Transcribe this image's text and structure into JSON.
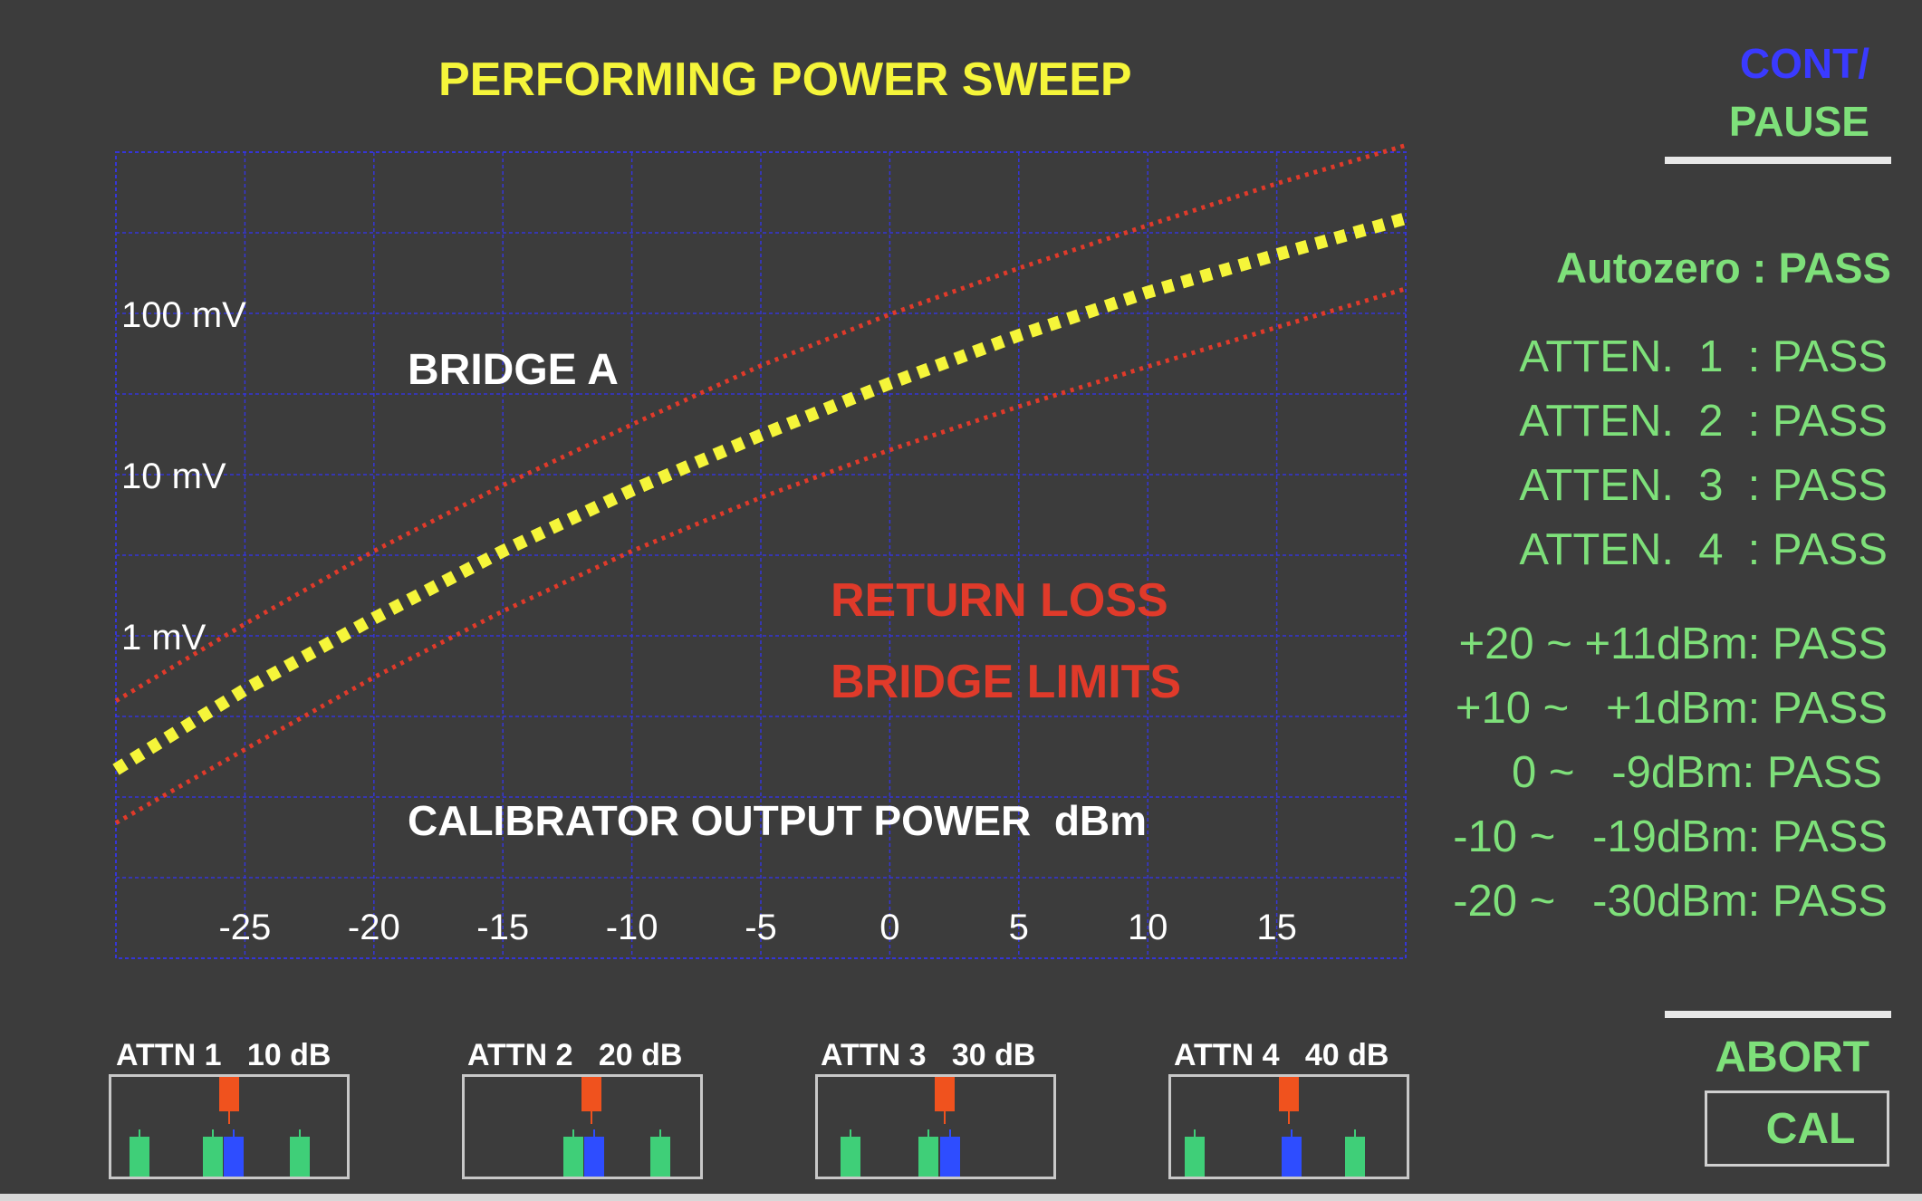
{
  "title": "PERFORMING POWER SWEEP",
  "colors": {
    "background": "#3c3c3c",
    "title": "#f5f53a",
    "grid": "#3535d8",
    "status_green": "#7ee07a",
    "limit_red": "#e03a2a",
    "measured_yellow": "#f5f53a",
    "cont_blue": "#3a3aff",
    "marker_orange": "#f0521e",
    "bar_green": "#3fcf78",
    "bar_blue": "#2e4dff"
  },
  "controls": {
    "cont_label": "CONT/",
    "pause_label": "PAUSE",
    "abort_label": "ABORT",
    "cal_label": "CAL"
  },
  "status": {
    "autozero": "Autozero :  PASS",
    "attenuators": [
      "ATTEN.  1  : PASS",
      "ATTEN.  2  : PASS",
      "ATTEN.  3  : PASS",
      "ATTEN.  4  : PASS"
    ],
    "ranges": [
      "+20 ~ +11dBm: PASS",
      "+10 ~   +1dBm: PASS",
      "0 ~   -9dBm: PASS",
      "-10 ~   -19dBm: PASS",
      "-20 ~   -30dBm: PASS"
    ]
  },
  "chart_data": {
    "type": "line",
    "bridge_label": "BRIDGE A",
    "limits_label_1": "RETURN LOSS",
    "limits_label_2": "BRIDGE LIMITS",
    "xlabel": "CALIBRATOR OUTPUT POWER  dBm",
    "x_ticks": [
      "-25",
      "-20",
      "-15",
      "-10",
      "-5",
      "0",
      "5",
      "10",
      "15"
    ],
    "y_ticks": [
      "100 mV",
      "10  mV",
      "1  mV"
    ],
    "xlim": [
      -30,
      20
    ],
    "y_scale": "log",
    "grid": true,
    "x": [
      -30,
      -25,
      -20,
      -15,
      -10,
      -5,
      0,
      5,
      10,
      15,
      20
    ],
    "series": [
      {
        "role": "upper-limit",
        "style": "dotted",
        "color": "#e03a2a",
        "values_mV": [
          0.4,
          1.2,
          3.4,
          8.7,
          20.7,
          48,
          100,
          193,
          356,
          647,
          1117
        ]
      },
      {
        "role": "measured",
        "style": "dotted-bold",
        "color": "#f5f53a",
        "values_mV": [
          0.15,
          0.47,
          1.3,
          3.4,
          8.1,
          17.8,
          37.3,
          74,
          137,
          234,
          394
        ]
      },
      {
        "role": "lower-limit",
        "style": "dotted",
        "color": "#e03a2a",
        "values_mV": [
          0.07,
          0.2,
          0.56,
          1.44,
          3.4,
          7.3,
          14.4,
          26.8,
          47.4,
          83,
          144
        ]
      }
    ]
  },
  "attenuators": [
    {
      "title": "ATTN 1   10 dB",
      "marker": 0.5,
      "bars": [
        {
          "pos": 0.12,
          "color": "green"
        },
        {
          "pos": 0.43,
          "color": "green"
        },
        {
          "pos": 0.52,
          "color": "blue"
        },
        {
          "pos": 0.8,
          "color": "green"
        }
      ]
    },
    {
      "title": "ATTN 2   20 dB",
      "marker": 0.54,
      "bars": [
        {
          "pos": 0.46,
          "color": "green"
        },
        {
          "pos": 0.55,
          "color": "blue"
        },
        {
          "pos": 0.83,
          "color": "green"
        }
      ]
    },
    {
      "title": "ATTN 3   30 dB",
      "marker": 0.54,
      "bars": [
        {
          "pos": 0.14,
          "color": "green"
        },
        {
          "pos": 0.47,
          "color": "green"
        },
        {
          "pos": 0.56,
          "color": "blue"
        }
      ]
    },
    {
      "title": "ATTN 4   40 dB",
      "marker": 0.5,
      "bars": [
        {
          "pos": 0.1,
          "color": "green"
        },
        {
          "pos": 0.51,
          "color": "blue"
        },
        {
          "pos": 0.78,
          "color": "green"
        }
      ]
    }
  ]
}
